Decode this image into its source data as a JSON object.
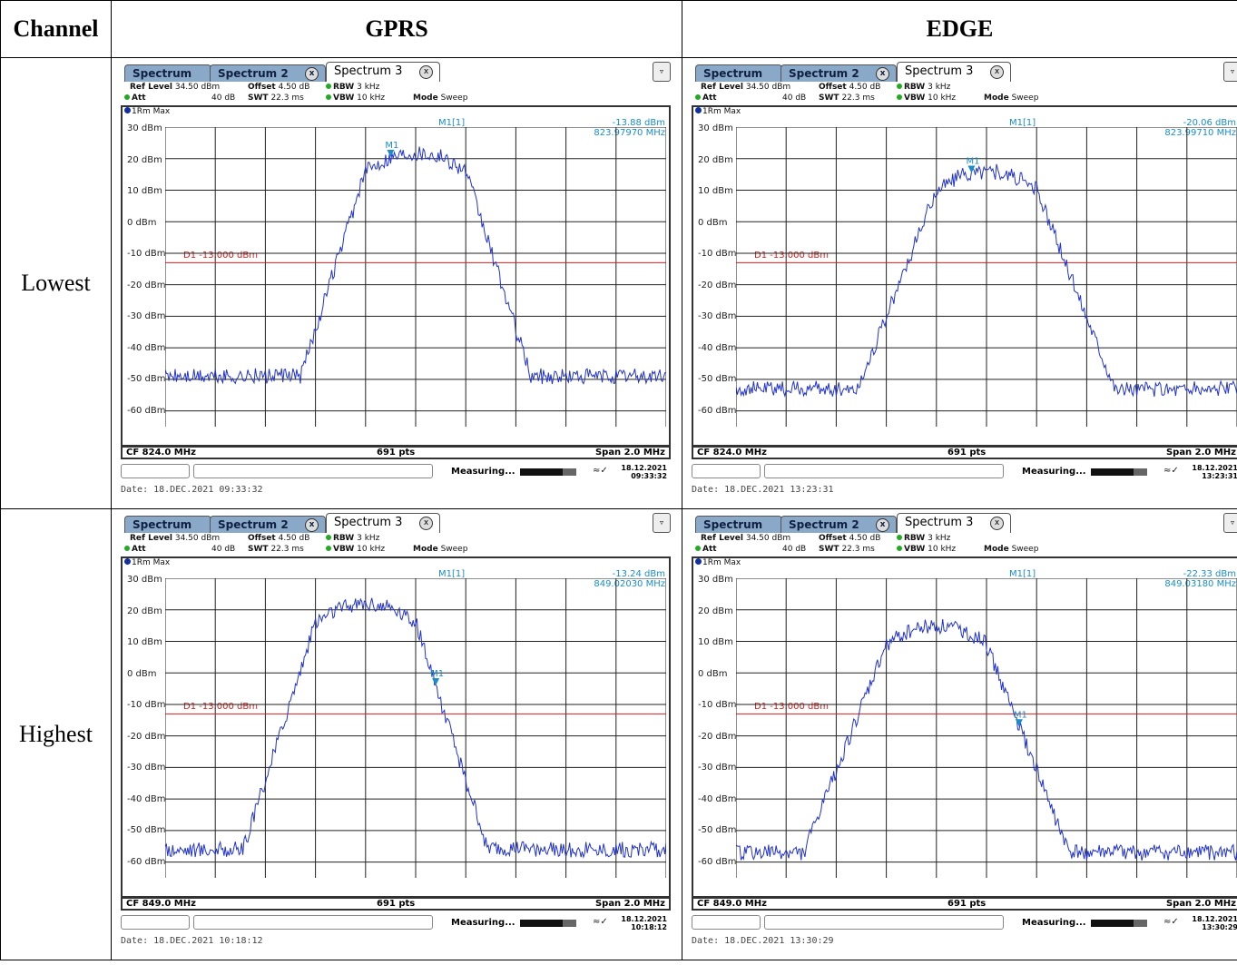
{
  "table": {
    "header_channel": "Channel",
    "header_gprs": "GPRS",
    "header_edge": "EDGE",
    "row_lowest": "Lowest",
    "row_highest": "Highest"
  },
  "analyzer": {
    "tab1": "Spectrum",
    "tab2": "Spectrum 2",
    "tab3": "Spectrum 3",
    "tab_close": "x",
    "ref_level_label": "Ref Level",
    "ref_level": "34.50 dBm",
    "offset_label": "Offset",
    "offset": "4.50 dB",
    "rbw_label": "RBW",
    "rbw": "3 kHz",
    "att_label": "Att",
    "att": "40 dB",
    "swt_label": "SWT",
    "swt": "22.3 ms",
    "vbw_label": "VBW",
    "vbw": "10 kHz",
    "mode_label": "Mode",
    "mode": "Sweep",
    "trace": "1Rm Max",
    "marker_name": "M1[1]",
    "marker_tag": "M1",
    "display_line": "D1 -13.000 dBm",
    "points": "691 pts",
    "span": "Span 2.0 MHz",
    "status": "Measuring...",
    "y_ticks": [
      "30 dBm",
      "20 dBm",
      "10 dBm",
      "0 dBm",
      "-10 dBm",
      "-20 dBm",
      "-30 dBm",
      "-40 dBm",
      "-50 dBm",
      "-60 dBm"
    ],
    "trace_color": "#2233cc",
    "marker_color": "#1a8cc7",
    "limit_color": "#d32020"
  },
  "shots": {
    "gprs_low": {
      "marker_level": "-13.88 dBm",
      "marker_freq": "823.97970 MHz",
      "cf": "CF 824.0 MHz",
      "dt_date": "18.12.2021",
      "dt_time": "09:33:32",
      "date_line": "Date: 18.DEC.2021  09:33:32"
    },
    "edge_low": {
      "marker_level": "-20.06 dBm",
      "marker_freq": "823.99710 MHz",
      "cf": "CF 824.0 MHz",
      "dt_date": "18.12.2021",
      "dt_time": "13:23:31",
      "date_line": "Date: 18.DEC.2021  13:23:31"
    },
    "gprs_high": {
      "marker_level": "-13.24 dBm",
      "marker_freq": "849.02030 MHz",
      "cf": "CF 849.0 MHz",
      "dt_date": "18.12.2021",
      "dt_time": "10:18:12",
      "date_line": "Date: 18.DEC.2021  10:18:12"
    },
    "edge_high": {
      "marker_level": "-22.33 dBm",
      "marker_freq": "849.03180 MHz",
      "cf": "CF 849.0 MHz",
      "dt_date": "18.12.2021",
      "dt_time": "13:30:29",
      "date_line": "Date: 18.DEC.2021  13:30:29"
    }
  },
  "traces": {
    "gprs_low": {
      "center": 0.0,
      "peak": 22,
      "halfwidth": 0.2,
      "skirt": 0.16,
      "floor": -49,
      "marker_x": -0.1
    },
    "edge_low": {
      "center": 0.0,
      "peak": 16,
      "halfwidth": 0.2,
      "skirt": 0.2,
      "floor": -53,
      "marker_x": -0.06
    },
    "gprs_high": {
      "center": -0.2,
      "peak": 22,
      "halfwidth": 0.2,
      "skirt": 0.16,
      "floor": -56,
      "marker_x": 0.08
    },
    "edge_high": {
      "center": -0.2,
      "peak": 15,
      "halfwidth": 0.2,
      "skirt": 0.2,
      "floor": -57,
      "marker_x": 0.13
    }
  }
}
